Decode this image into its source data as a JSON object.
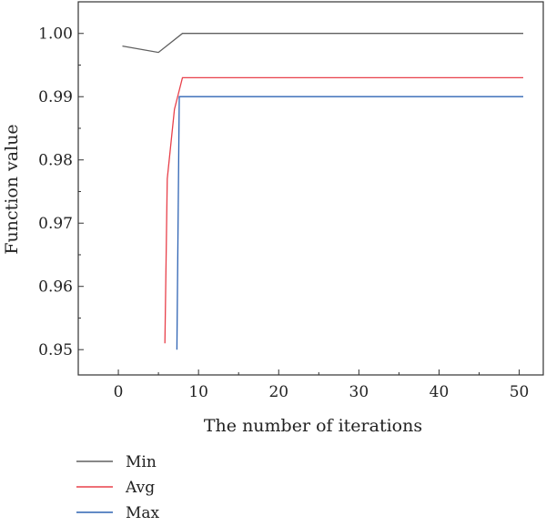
{
  "chart_data": {
    "type": "line",
    "xlabel": "The number of iterations",
    "ylabel": "Function value",
    "xlim": [
      -5,
      53
    ],
    "ylim": [
      0.946,
      1.005
    ],
    "xticks": [
      0,
      10,
      20,
      30,
      40,
      50
    ],
    "xtick_labels": [
      "0",
      "10",
      "20",
      "30",
      "40",
      "50"
    ],
    "yticks": [
      0.95,
      0.96,
      0.97,
      0.98,
      0.99,
      1.0
    ],
    "ytick_labels": [
      "0.95",
      "0.96",
      "0.97",
      "0.98",
      "0.99",
      "1.00"
    ],
    "grid": false,
    "legend_position": "bottom-left",
    "series": [
      {
        "name": "Min",
        "color": "#606060",
        "points": [
          [
            0.5,
            0.998
          ],
          [
            5,
            0.997
          ],
          [
            8,
            1.0
          ],
          [
            50.5,
            1.0
          ]
        ]
      },
      {
        "name": "Avg",
        "color": "#e8404a",
        "points": [
          [
            5.8,
            0.951
          ],
          [
            6.1,
            0.977
          ],
          [
            7,
            0.988
          ],
          [
            8,
            0.993
          ],
          [
            50.5,
            0.993
          ]
        ]
      },
      {
        "name": "Max",
        "color": "#2f64b4",
        "points": [
          [
            7.3,
            0.95
          ],
          [
            7.6,
            0.99
          ],
          [
            50.5,
            0.99
          ]
        ]
      }
    ]
  }
}
